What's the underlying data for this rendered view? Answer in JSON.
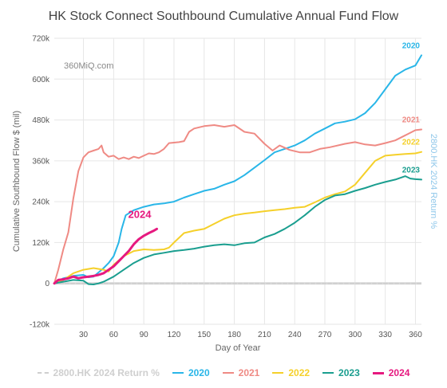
{
  "chart_data": {
    "type": "line",
    "title": "HK Stock Connect Southbound Cumulative Annual Fund Flow",
    "watermark": "360MiQ.com",
    "xlabel": "Day of Year",
    "ylabel": "Cumulative Southbound Flow $ (mil)",
    "y2label": "2800.HK 2024 Return %",
    "xlim": [
      1,
      366
    ],
    "ylim": [
      -120000,
      720000
    ],
    "x_ticks": [
      30,
      60,
      90,
      120,
      150,
      180,
      210,
      240,
      270,
      300,
      330,
      360
    ],
    "y_ticks": [
      -120000,
      0,
      120000,
      240000,
      360000,
      480000,
      600000,
      720000
    ],
    "y_tick_labels": [
      "-120k",
      "0",
      "120k",
      "240k",
      "360k",
      "480k",
      "600k",
      "720k"
    ],
    "legend_position": "bottom",
    "series": [
      {
        "name": "2800.HK 2024 Return %",
        "color": "#cfcfcf",
        "dashed": true,
        "end_label": "",
        "points": [
          [
            1,
            0
          ],
          [
            366,
            0
          ]
        ]
      },
      {
        "name": "2020",
        "color": "#29b6e8",
        "end_label": "2020",
        "points": [
          [
            1,
            0
          ],
          [
            10,
            15000
          ],
          [
            20,
            22000
          ],
          [
            30,
            25000
          ],
          [
            35,
            18000
          ],
          [
            40,
            20000
          ],
          [
            50,
            45000
          ],
          [
            55,
            60000
          ],
          [
            60,
            80000
          ],
          [
            65,
            120000
          ],
          [
            68,
            160000
          ],
          [
            72,
            200000
          ],
          [
            80,
            215000
          ],
          [
            90,
            225000
          ],
          [
            100,
            232000
          ],
          [
            110,
            235000
          ],
          [
            120,
            240000
          ],
          [
            130,
            252000
          ],
          [
            140,
            262000
          ],
          [
            150,
            272000
          ],
          [
            160,
            278000
          ],
          [
            170,
            290000
          ],
          [
            180,
            300000
          ],
          [
            190,
            318000
          ],
          [
            200,
            340000
          ],
          [
            210,
            362000
          ],
          [
            220,
            385000
          ],
          [
            230,
            395000
          ],
          [
            240,
            405000
          ],
          [
            250,
            420000
          ],
          [
            260,
            440000
          ],
          [
            270,
            455000
          ],
          [
            280,
            470000
          ],
          [
            290,
            475000
          ],
          [
            300,
            482000
          ],
          [
            310,
            500000
          ],
          [
            320,
            530000
          ],
          [
            330,
            570000
          ],
          [
            340,
            610000
          ],
          [
            350,
            628000
          ],
          [
            360,
            640000
          ],
          [
            366,
            670000
          ]
        ]
      },
      {
        "name": "2021",
        "color": "#ef8a84",
        "end_label": "2021",
        "points": [
          [
            1,
            0
          ],
          [
            5,
            40000
          ],
          [
            10,
            100000
          ],
          [
            15,
            150000
          ],
          [
            20,
            250000
          ],
          [
            25,
            330000
          ],
          [
            30,
            370000
          ],
          [
            35,
            385000
          ],
          [
            40,
            390000
          ],
          [
            45,
            395000
          ],
          [
            48,
            405000
          ],
          [
            50,
            385000
          ],
          [
            55,
            372000
          ],
          [
            60,
            375000
          ],
          [
            65,
            365000
          ],
          [
            70,
            370000
          ],
          [
            75,
            365000
          ],
          [
            80,
            372000
          ],
          [
            85,
            368000
          ],
          [
            90,
            375000
          ],
          [
            95,
            382000
          ],
          [
            100,
            380000
          ],
          [
            105,
            385000
          ],
          [
            110,
            395000
          ],
          [
            115,
            412000
          ],
          [
            125,
            415000
          ],
          [
            130,
            418000
          ],
          [
            135,
            445000
          ],
          [
            140,
            455000
          ],
          [
            150,
            462000
          ],
          [
            160,
            465000
          ],
          [
            170,
            460000
          ],
          [
            180,
            465000
          ],
          [
            190,
            445000
          ],
          [
            200,
            440000
          ],
          [
            210,
            410000
          ],
          [
            218,
            390000
          ],
          [
            225,
            405000
          ],
          [
            235,
            392000
          ],
          [
            245,
            385000
          ],
          [
            255,
            385000
          ],
          [
            265,
            395000
          ],
          [
            275,
            400000
          ],
          [
            290,
            410000
          ],
          [
            300,
            415000
          ],
          [
            310,
            408000
          ],
          [
            320,
            405000
          ],
          [
            330,
            412000
          ],
          [
            340,
            420000
          ],
          [
            350,
            435000
          ],
          [
            360,
            450000
          ],
          [
            366,
            452000
          ]
        ]
      },
      {
        "name": "2022",
        "color": "#f5d02a",
        "end_label": "2022",
        "points": [
          [
            1,
            0
          ],
          [
            10,
            10000
          ],
          [
            20,
            30000
          ],
          [
            30,
            40000
          ],
          [
            40,
            45000
          ],
          [
            50,
            40000
          ],
          [
            55,
            35000
          ],
          [
            60,
            55000
          ],
          [
            70,
            80000
          ],
          [
            80,
            95000
          ],
          [
            90,
            100000
          ],
          [
            100,
            98000
          ],
          [
            110,
            100000
          ],
          [
            115,
            105000
          ],
          [
            120,
            120000
          ],
          [
            130,
            148000
          ],
          [
            140,
            155000
          ],
          [
            150,
            160000
          ],
          [
            160,
            175000
          ],
          [
            170,
            190000
          ],
          [
            180,
            200000
          ],
          [
            190,
            205000
          ],
          [
            200,
            208000
          ],
          [
            210,
            212000
          ],
          [
            220,
            215000
          ],
          [
            230,
            218000
          ],
          [
            240,
            222000
          ],
          [
            250,
            225000
          ],
          [
            260,
            238000
          ],
          [
            270,
            252000
          ],
          [
            280,
            262000
          ],
          [
            290,
            270000
          ],
          [
            300,
            290000
          ],
          [
            310,
            325000
          ],
          [
            320,
            360000
          ],
          [
            330,
            375000
          ],
          [
            340,
            378000
          ],
          [
            350,
            380000
          ],
          [
            360,
            382000
          ],
          [
            366,
            386000
          ]
        ]
      },
      {
        "name": "2023",
        "color": "#1a9e8f",
        "end_label": "2023",
        "points": [
          [
            1,
            0
          ],
          [
            10,
            5000
          ],
          [
            20,
            10000
          ],
          [
            30,
            8000
          ],
          [
            35,
            -2000
          ],
          [
            40,
            -3000
          ],
          [
            45,
            0
          ],
          [
            50,
            5000
          ],
          [
            60,
            20000
          ],
          [
            70,
            40000
          ],
          [
            80,
            60000
          ],
          [
            90,
            75000
          ],
          [
            100,
            85000
          ],
          [
            110,
            90000
          ],
          [
            120,
            95000
          ],
          [
            130,
            98000
          ],
          [
            140,
            102000
          ],
          [
            150,
            108000
          ],
          [
            160,
            112000
          ],
          [
            170,
            115000
          ],
          [
            180,
            112000
          ],
          [
            190,
            118000
          ],
          [
            200,
            120000
          ],
          [
            210,
            135000
          ],
          [
            220,
            145000
          ],
          [
            230,
            160000
          ],
          [
            240,
            178000
          ],
          [
            250,
            200000
          ],
          [
            260,
            225000
          ],
          [
            270,
            245000
          ],
          [
            280,
            258000
          ],
          [
            290,
            262000
          ],
          [
            300,
            272000
          ],
          [
            310,
            280000
          ],
          [
            320,
            290000
          ],
          [
            330,
            298000
          ],
          [
            340,
            305000
          ],
          [
            350,
            315000
          ],
          [
            355,
            308000
          ],
          [
            360,
            306000
          ],
          [
            366,
            305000
          ]
        ]
      },
      {
        "name": "2024",
        "color": "#e6197f",
        "bold": true,
        "end_label": "2024",
        "points": [
          [
            1,
            0
          ],
          [
            5,
            10000
          ],
          [
            10,
            12000
          ],
          [
            15,
            15000
          ],
          [
            20,
            20000
          ],
          [
            25,
            15000
          ],
          [
            30,
            18000
          ],
          [
            35,
            20000
          ],
          [
            40,
            22000
          ],
          [
            45,
            25000
          ],
          [
            50,
            30000
          ],
          [
            55,
            40000
          ],
          [
            60,
            50000
          ],
          [
            65,
            65000
          ],
          [
            70,
            80000
          ],
          [
            75,
            95000
          ],
          [
            80,
            115000
          ],
          [
            85,
            130000
          ],
          [
            90,
            140000
          ],
          [
            95,
            148000
          ],
          [
            100,
            155000
          ],
          [
            103,
            160000
          ]
        ]
      }
    ]
  }
}
